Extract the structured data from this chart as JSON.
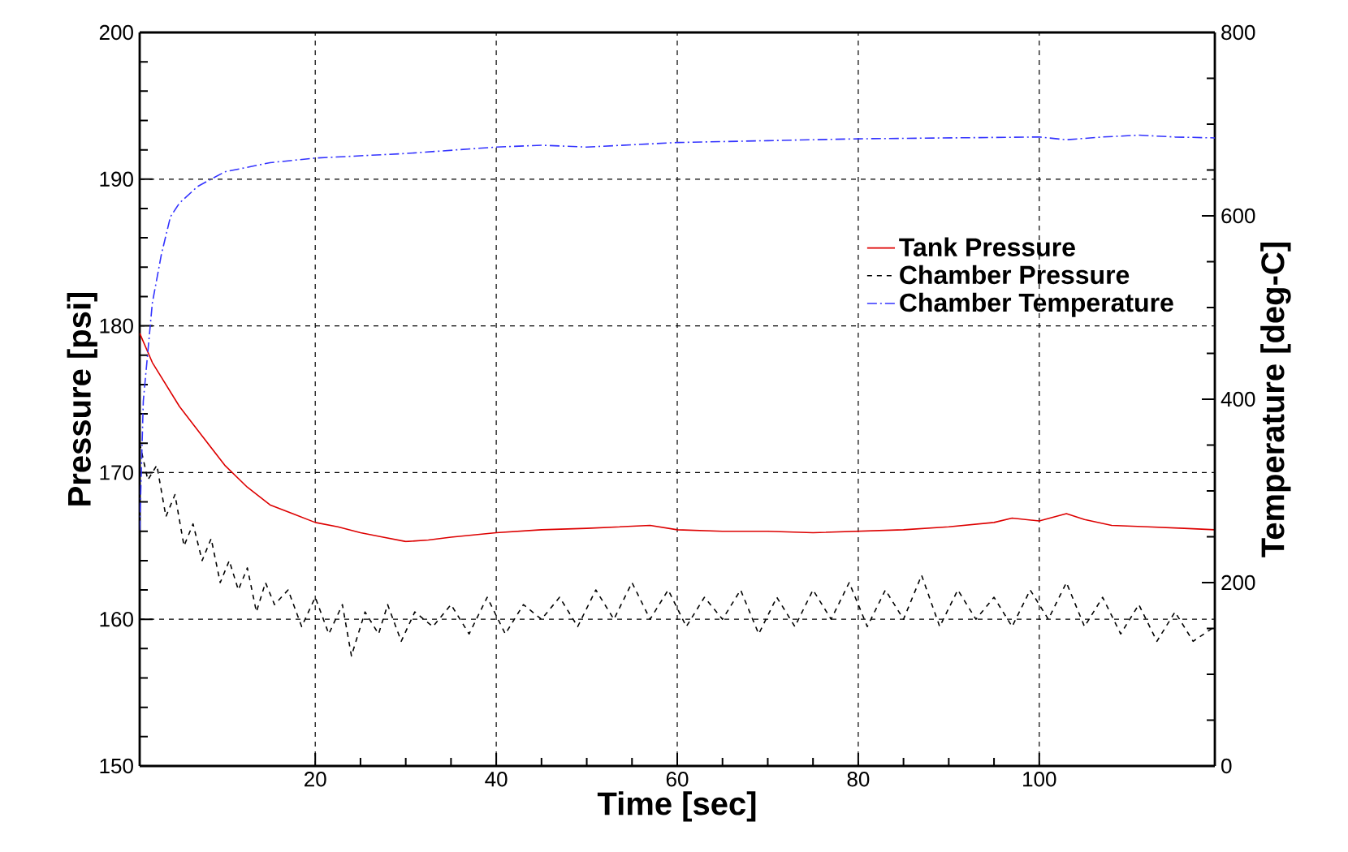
{
  "chart_data": {
    "type": "line",
    "xlabel": "Time [sec]",
    "ylabel": "Pressure [psi]",
    "y2label": "Temperature [deg-C]",
    "xlim": [
      0.6,
      119.4
    ],
    "xticks": [
      20,
      40,
      60,
      80,
      100
    ],
    "ylim": [
      150,
      200
    ],
    "yticks": [
      150,
      160,
      170,
      180,
      190,
      200
    ],
    "y2lim": [
      0,
      800
    ],
    "y2ticks": [
      0,
      200,
      400,
      600,
      800
    ],
    "grid": true,
    "legend": "top right",
    "marker": "none",
    "series": [
      {
        "name": "Tank Pressure",
        "color": "#dd0000",
        "line_style": "solid",
        "x": [
          0.6,
          2,
          5,
          7.5,
          10,
          12.5,
          15,
          17.5,
          20,
          22.5,
          25,
          27.5,
          30,
          32.5,
          35,
          40,
          45,
          50,
          57,
          60,
          65,
          70,
          75,
          80,
          85,
          90,
          95,
          97,
          100,
          103,
          105,
          108,
          112,
          116,
          119.4
        ],
        "values": [
          179.5,
          177.5,
          174.5,
          172.5,
          170.5,
          169,
          167.8,
          167.2,
          166.6,
          166.3,
          165.9,
          165.6,
          165.3,
          165.4,
          165.6,
          165.9,
          166.1,
          166.2,
          166.4,
          166.1,
          166,
          166,
          165.9,
          166,
          166.1,
          166.3,
          166.6,
          166.9,
          166.7,
          167.2,
          166.8,
          166.4,
          166.3,
          166.2,
          166.1
        ]
      },
      {
        "name": "Chamber Pressure",
        "color": "#000000",
        "line_style": "dashed",
        "x": [
          0.6,
          1.5,
          2.5,
          3.5,
          4.5,
          5.5,
          6.5,
          7.5,
          8.5,
          9.5,
          10.5,
          11.5,
          12.5,
          13.5,
          14.5,
          15.5,
          17,
          18.5,
          20,
          21.5,
          23,
          24,
          25.5,
          27,
          28,
          29.5,
          31,
          33,
          35,
          37,
          39,
          41,
          43,
          45,
          47,
          49,
          51,
          53,
          55,
          57,
          59,
          61,
          63,
          65,
          67,
          69,
          71,
          73,
          75,
          77,
          79,
          81,
          83,
          85,
          87,
          89,
          91,
          93,
          95,
          97,
          99,
          101,
          103,
          105,
          107,
          109,
          111,
          113,
          115,
          117,
          119.4
        ],
        "values": [
          172,
          169.5,
          170.5,
          167,
          168.5,
          165,
          166.5,
          164,
          165.5,
          162.5,
          164,
          162,
          163.5,
          160.5,
          162.5,
          161,
          162,
          159.5,
          161.5,
          159,
          161,
          157.5,
          160.5,
          159,
          161,
          158.5,
          160.5,
          159.5,
          161,
          159,
          161.5,
          159,
          161,
          160,
          161.5,
          159.5,
          162,
          160,
          162.5,
          160,
          162,
          159.5,
          161.5,
          160,
          162,
          159,
          161.5,
          159.5,
          162,
          160,
          162.5,
          159.5,
          162,
          160,
          163,
          159.5,
          162,
          160,
          161.5,
          159.5,
          162,
          160,
          162.5,
          159.5,
          161.5,
          159,
          161,
          158.5,
          160.5,
          158.5,
          159.5
        ]
      },
      {
        "name": "Chamber Temperature",
        "color": "#3333ff",
        "line_style": "dashdot",
        "axis": "y2",
        "x": [
          0.6,
          1,
          2,
          3,
          4,
          5,
          7,
          10,
          15,
          20,
          30,
          40,
          45,
          50,
          60,
          70,
          80,
          90,
          100,
          103,
          107,
          111,
          115,
          119.4
        ],
        "values": [
          257,
          398,
          505,
          558,
          599,
          614,
          632,
          648,
          658,
          663,
          668,
          675,
          677,
          675,
          680,
          682,
          684,
          685,
          686,
          683,
          686,
          688,
          686,
          685
        ]
      }
    ]
  }
}
